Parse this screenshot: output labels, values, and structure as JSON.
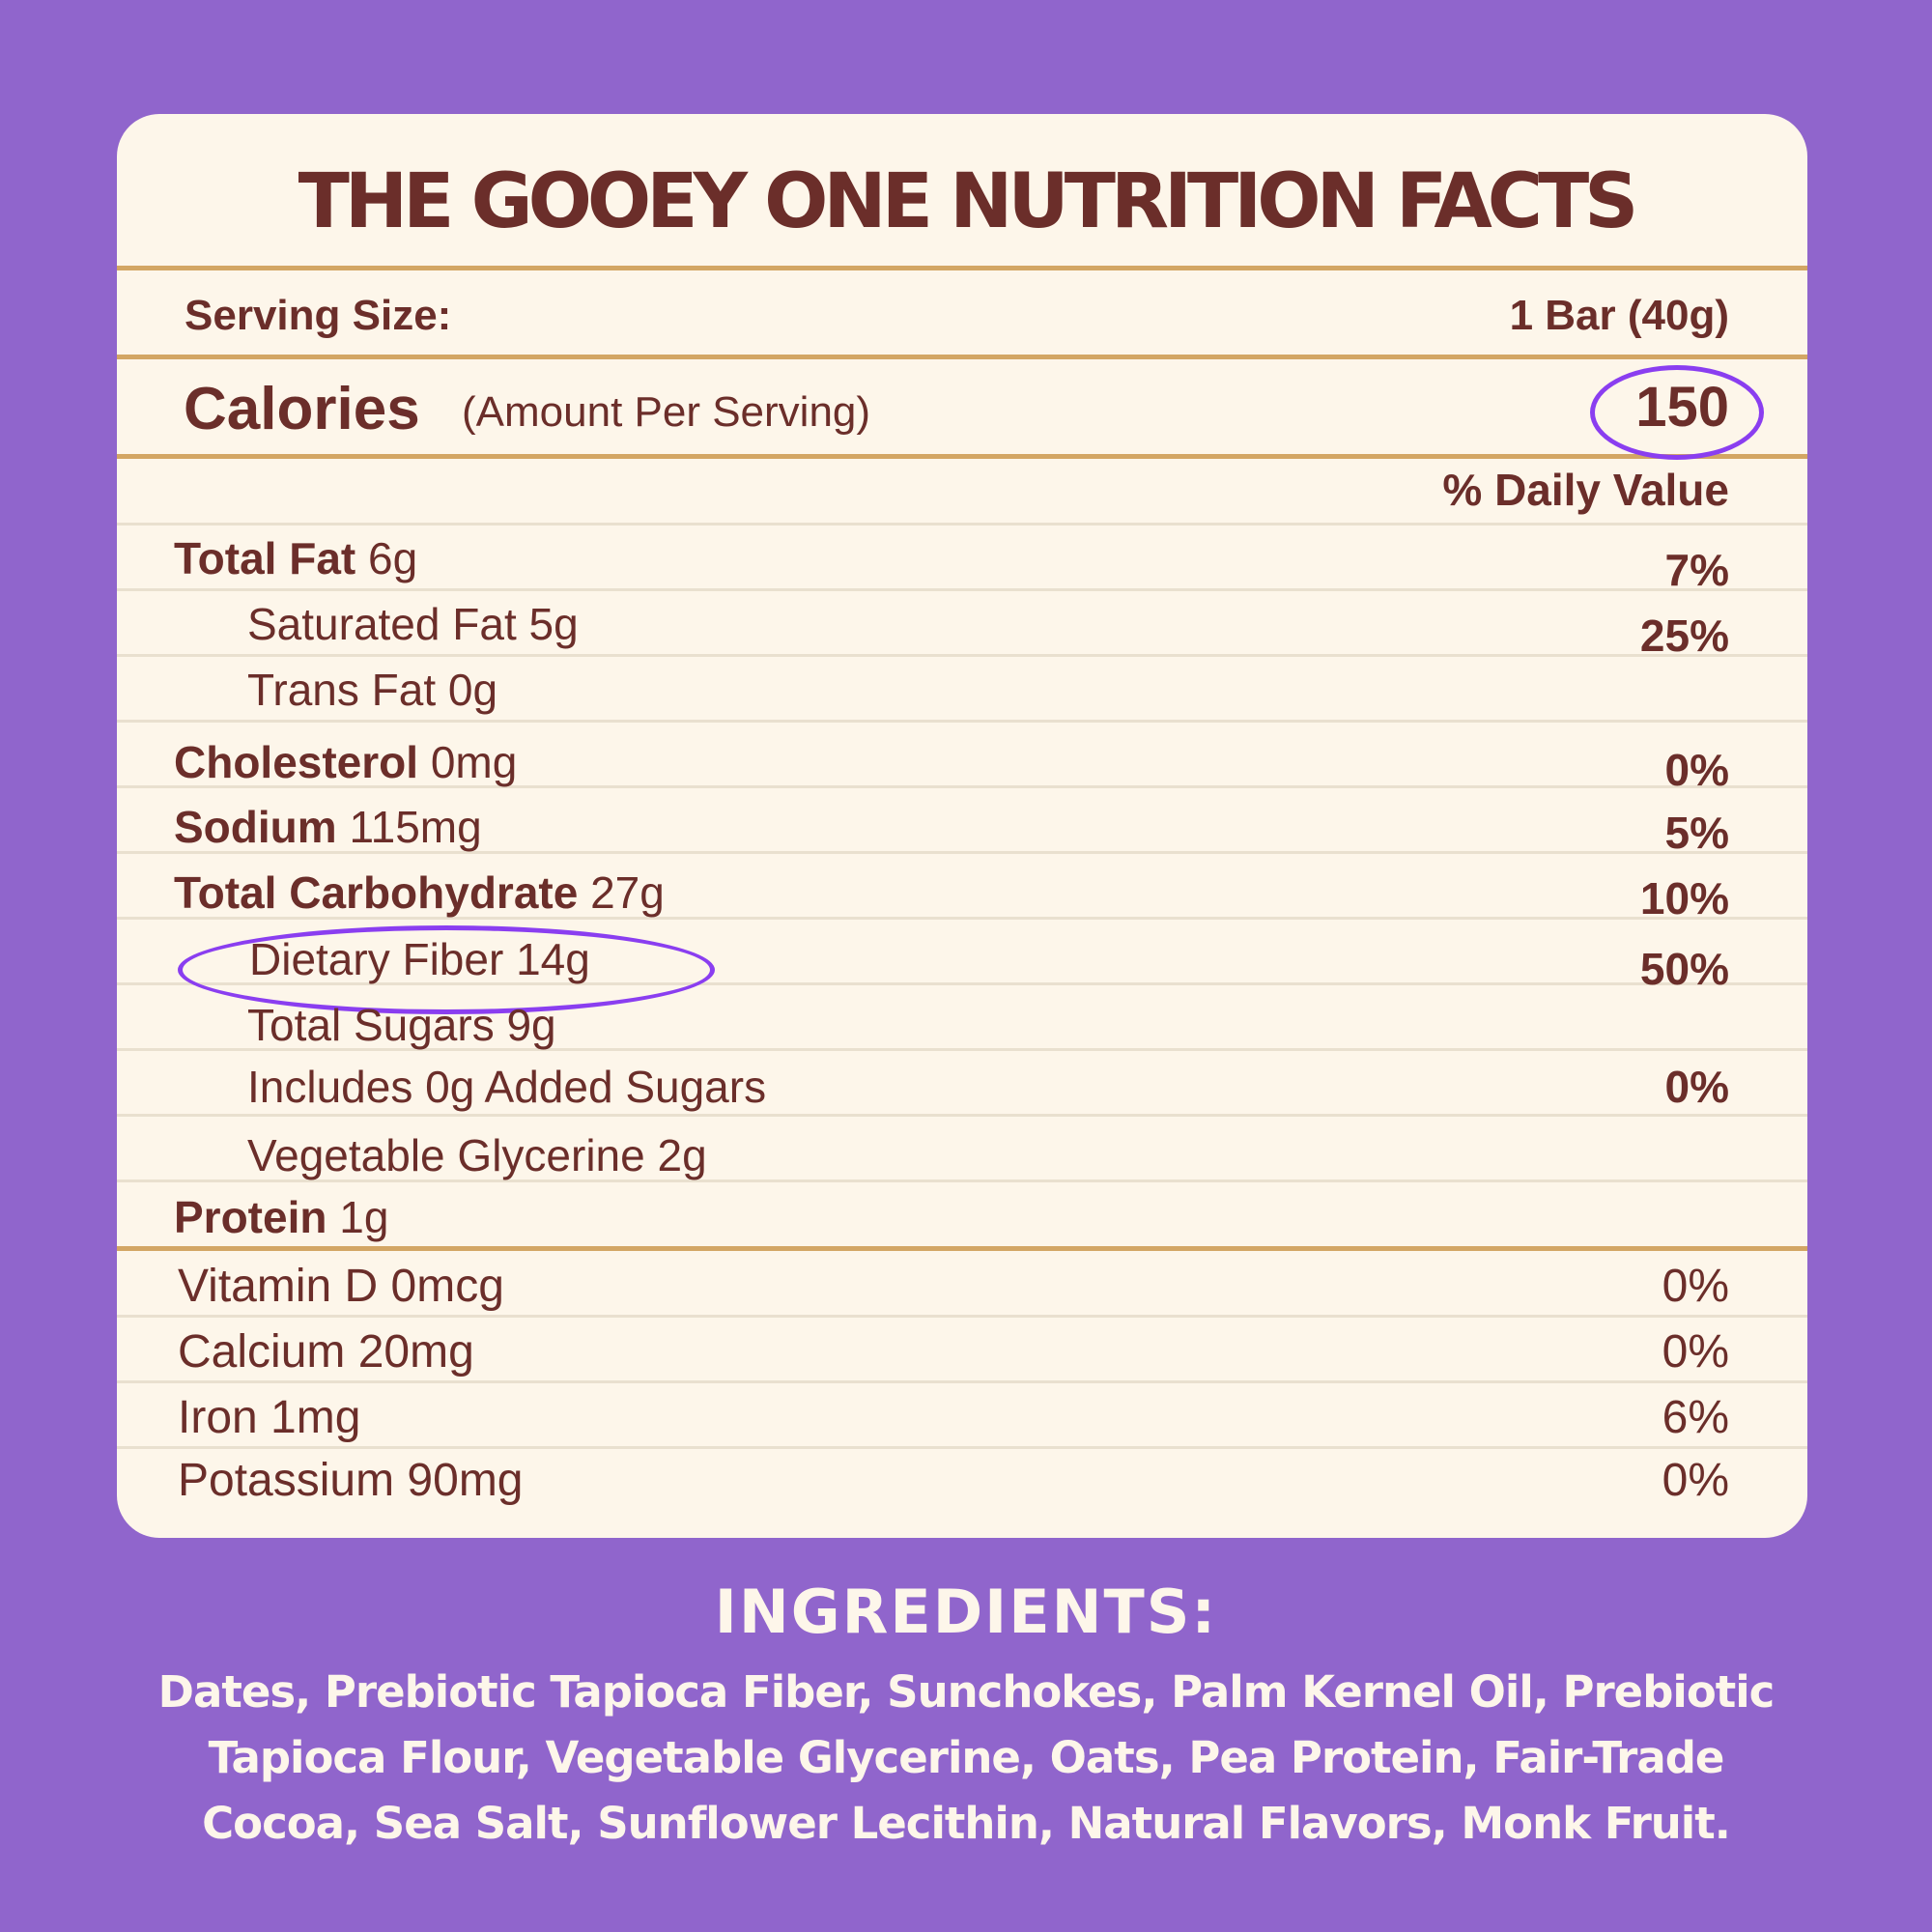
{
  "title": "THE GOOEY ONE NUTRITION FACTS",
  "serving": {
    "label": "Serving Size:",
    "value": "1 Bar (40g)"
  },
  "calories": {
    "label": "Calories",
    "sub": "(Amount Per Serving)",
    "value": "150"
  },
  "daily_value_header": "% Daily Value",
  "nutrients": [
    {
      "name": "Total Fat",
      "amount": "6g",
      "dv": "7%"
    },
    {
      "name": "Saturated Fat 5g",
      "amount": "",
      "dv": "25%"
    },
    {
      "name": "Trans Fat 0g",
      "amount": "",
      "dv": ""
    },
    {
      "name": "Cholesterol",
      "amount": "0mg",
      "dv": "0%"
    },
    {
      "name": "Sodium",
      "amount": "115mg",
      "dv": "5%"
    },
    {
      "name": "Total Carbohydrate",
      "amount": "27g",
      "dv": "10%"
    },
    {
      "name": "Dietary Fiber 14g",
      "amount": "",
      "dv": "50%"
    },
    {
      "name": "Total Sugars 9g",
      "amount": "",
      "dv": ""
    },
    {
      "name": "Includes 0g Added Sugars",
      "amount": "",
      "dv": "0%"
    },
    {
      "name": "Vegetable Glycerine 2g",
      "amount": "",
      "dv": ""
    },
    {
      "name": "Protein",
      "amount": "1g",
      "dv": ""
    }
  ],
  "vitamins": [
    {
      "name": "Vitamin D 0mcg",
      "dv": "0%"
    },
    {
      "name": "Calcium 20mg",
      "dv": "0%"
    },
    {
      "name": "Iron 1mg",
      "dv": "6%"
    },
    {
      "name": "Potassium 90mg",
      "dv": "0%"
    }
  ],
  "ingredients": {
    "title": "INGREDIENTS:",
    "lines": [
      "Dates, Prebiotic Tapioca Fiber, Sunchokes, Palm Kernel Oil, Prebiotic",
      "Tapioca Flour, Vegetable Glycerine, Oats, Pea Protein, Fair-Trade",
      "Cocoa, Sea Salt, Sunflower Lecithin, Natural Flavors, Monk Fruit."
    ]
  },
  "colors": {
    "background": "#9065cc",
    "card": "#fdf6ea",
    "text": "#6b2e2a",
    "rule": "#d3a664",
    "highlight": "#8a3ef0"
  }
}
